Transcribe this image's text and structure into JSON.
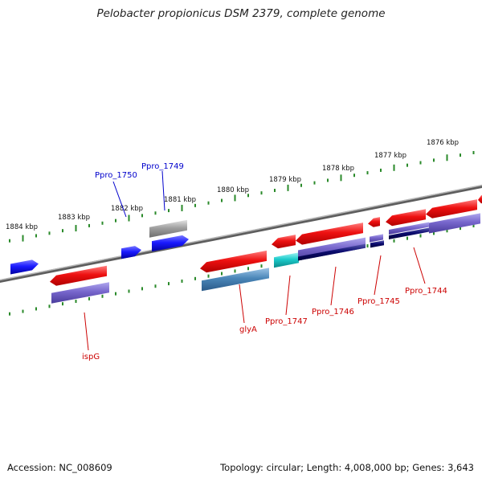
{
  "header": {
    "title": "Pelobacter propionicus DSM 2379, complete genome"
  },
  "footer": {
    "accession": "Accession: NC_008609",
    "stats": "Topology: circular; Length: 4,008,000 bp; Genes: 3,643"
  },
  "colors": {
    "forward_gene": "#1a1aff",
    "reverse_gene": "#ee1111",
    "reverse_cds": "#7766cc",
    "dark_cds": "#0b0b6e",
    "steel_cds": "#4a86b8",
    "cyan_cds": "#1ccbcb",
    "gray_feature": "#a0a0a0",
    "backbone": "#7a7a7a",
    "tick": "#2a8a2a",
    "label_forward": "#0000cc",
    "label_reverse": "#cc0000"
  },
  "scale_labels": [
    "1884 kbp",
    "1883 kbp",
    "1882 kbp",
    "1881 kbp",
    "1880 kbp",
    "1879 kbp",
    "1878 kbp",
    "1877 kbp",
    "1876 kbp"
  ],
  "gene_labels": [
    {
      "text": "Ppro_1750",
      "strand": "forward"
    },
    {
      "text": "Ppro_1749",
      "strand": "forward"
    },
    {
      "text": "ispG",
      "strand": "reverse"
    },
    {
      "text": "glyA",
      "strand": "reverse"
    },
    {
      "text": "Ppro_1747",
      "strand": "reverse"
    },
    {
      "text": "Ppro_1746",
      "strand": "reverse"
    },
    {
      "text": "Ppro_1745",
      "strand": "reverse"
    },
    {
      "text": "Ppro_1744",
      "strand": "reverse"
    }
  ]
}
